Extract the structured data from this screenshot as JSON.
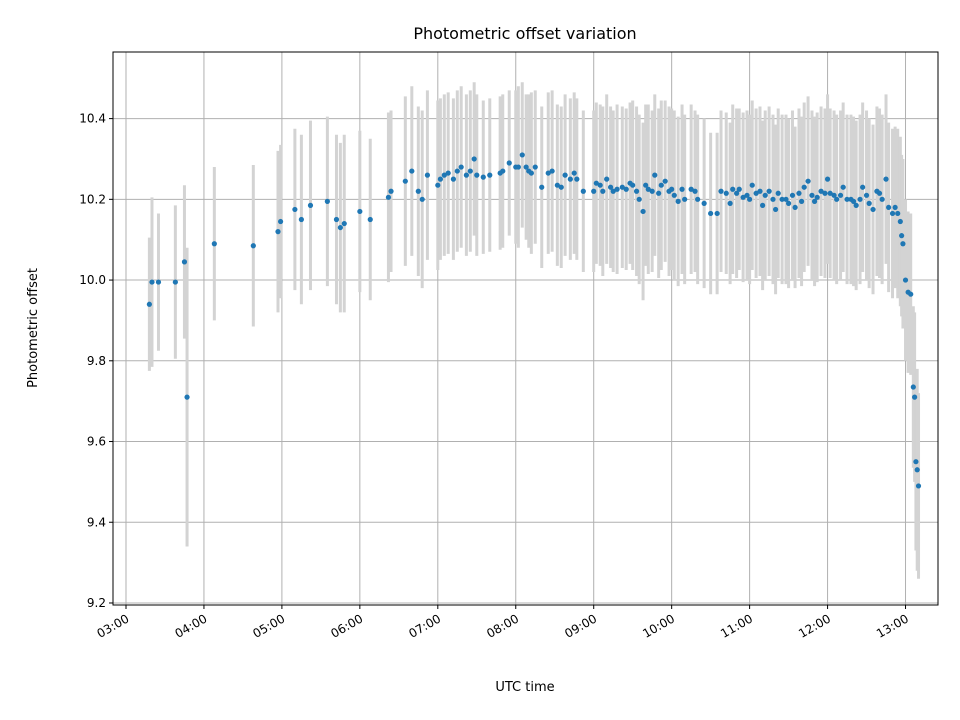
{
  "chart_data": {
    "type": "scatter",
    "title": "Photometric offset variation",
    "xlabel": "UTC time",
    "ylabel": "Photometric offset",
    "x_unit": "UTC time of day (hours)",
    "xlim": [
      "02:50",
      "13:25"
    ],
    "ylim": [
      9.195,
      10.565
    ],
    "x_ticks": [
      "03:00",
      "04:00",
      "05:00",
      "06:00",
      "07:00",
      "08:00",
      "09:00",
      "10:00",
      "11:00",
      "12:00",
      "13:00"
    ],
    "y_ticks": [
      "9.2",
      "9.4",
      "9.6",
      "9.8",
      "10.0",
      "10.2",
      "10.4"
    ],
    "grid": true,
    "colors": {
      "point": "#1f77b4",
      "errorbar": "#d3d3d3"
    },
    "series": [
      {
        "points": [
          [
            "03:18",
            9.94,
            0.165
          ],
          [
            "03:20",
            9.995,
            0.21
          ],
          [
            "03:25",
            9.995,
            0.17
          ],
          [
            "03:38",
            9.995,
            0.19
          ],
          [
            "03:45",
            10.045,
            0.19
          ],
          [
            "03:47",
            9.71,
            0.37
          ],
          [
            "04:08",
            10.09,
            0.19
          ],
          [
            "04:38",
            10.085,
            0.2
          ],
          [
            "04:57",
            10.12,
            0.2
          ],
          [
            "04:59",
            10.145,
            0.19
          ],
          [
            "05:10",
            10.175,
            0.2
          ],
          [
            "05:15",
            10.15,
            0.21
          ],
          [
            "05:22",
            10.185,
            0.21
          ],
          [
            "05:35",
            10.195,
            0.21
          ],
          [
            "05:42",
            10.15,
            0.21
          ],
          [
            "05:45",
            10.13,
            0.21
          ],
          [
            "05:48",
            10.14,
            0.22
          ],
          [
            "06:00",
            10.17,
            0.2
          ],
          [
            "06:08",
            10.15,
            0.2
          ],
          [
            "06:22",
            10.205,
            0.21
          ],
          [
            "06:24",
            10.22,
            0.2
          ],
          [
            "06:35",
            10.245,
            0.21
          ],
          [
            "06:40",
            10.27,
            0.21
          ],
          [
            "06:45",
            10.22,
            0.21
          ],
          [
            "06:48",
            10.2,
            0.22
          ],
          [
            "06:52",
            10.26,
            0.21
          ],
          [
            "07:00",
            10.235,
            0.21
          ],
          [
            "07:02",
            10.25,
            0.2
          ],
          [
            "07:05",
            10.26,
            0.2
          ],
          [
            "07:08",
            10.265,
            0.2
          ],
          [
            "07:12",
            10.25,
            0.2
          ],
          [
            "07:15",
            10.27,
            0.2
          ],
          [
            "07:18",
            10.28,
            0.2
          ],
          [
            "07:22",
            10.26,
            0.2
          ],
          [
            "07:25",
            10.27,
            0.2
          ],
          [
            "07:28",
            10.3,
            0.19
          ],
          [
            "07:30",
            10.26,
            0.2
          ],
          [
            "07:35",
            10.255,
            0.19
          ],
          [
            "07:40",
            10.26,
            0.19
          ],
          [
            "07:48",
            10.265,
            0.19
          ],
          [
            "07:50",
            10.27,
            0.19
          ],
          [
            "07:55",
            10.29,
            0.18
          ],
          [
            "08:00",
            10.28,
            0.19
          ],
          [
            "08:02",
            10.28,
            0.2
          ],
          [
            "08:05",
            10.31,
            0.18
          ],
          [
            "08:08",
            10.28,
            0.18
          ],
          [
            "08:10",
            10.27,
            0.19
          ],
          [
            "08:12",
            10.265,
            0.2
          ],
          [
            "08:15",
            10.28,
            0.19
          ],
          [
            "08:20",
            10.23,
            0.2
          ],
          [
            "08:25",
            10.265,
            0.2
          ],
          [
            "08:28",
            10.27,
            0.2
          ],
          [
            "08:32",
            10.235,
            0.2
          ],
          [
            "08:35",
            10.23,
            0.2
          ],
          [
            "08:38",
            10.26,
            0.2
          ],
          [
            "08:42",
            10.25,
            0.2
          ],
          [
            "08:45",
            10.265,
            0.2
          ],
          [
            "08:47",
            10.25,
            0.2
          ],
          [
            "08:52",
            10.22,
            0.2
          ],
          [
            "09:00",
            10.22,
            0.2
          ],
          [
            "09:02",
            10.24,
            0.2
          ],
          [
            "09:05",
            10.235,
            0.2
          ],
          [
            "09:07",
            10.22,
            0.21
          ],
          [
            "09:10",
            10.25,
            0.21
          ],
          [
            "09:13",
            10.23,
            0.2
          ],
          [
            "09:15",
            10.22,
            0.2
          ],
          [
            "09:18",
            10.225,
            0.21
          ],
          [
            "09:22",
            10.23,
            0.2
          ],
          [
            "09:25",
            10.225,
            0.2
          ],
          [
            "09:28",
            10.24,
            0.2
          ],
          [
            "09:30",
            10.235,
            0.21
          ],
          [
            "09:33",
            10.22,
            0.21
          ],
          [
            "09:35",
            10.2,
            0.21
          ],
          [
            "09:38",
            10.17,
            0.22
          ],
          [
            "09:40",
            10.235,
            0.2
          ],
          [
            "09:42",
            10.225,
            0.21
          ],
          [
            "09:45",
            10.22,
            0.2
          ],
          [
            "09:47",
            10.26,
            0.2
          ],
          [
            "09:50",
            10.215,
            0.21
          ],
          [
            "09:52",
            10.235,
            0.21
          ],
          [
            "09:55",
            10.245,
            0.2
          ],
          [
            "09:58",
            10.22,
            0.21
          ],
          [
            "10:00",
            10.225,
            0.2
          ],
          [
            "10:02",
            10.21,
            0.21
          ],
          [
            "10:05",
            10.195,
            0.21
          ],
          [
            "10:08",
            10.225,
            0.21
          ],
          [
            "10:10",
            10.2,
            0.21
          ],
          [
            "10:15",
            10.225,
            0.21
          ],
          [
            "10:18",
            10.22,
            0.2
          ],
          [
            "10:20",
            10.2,
            0.21
          ],
          [
            "10:25",
            10.19,
            0.21
          ],
          [
            "10:30",
            10.165,
            0.2
          ],
          [
            "10:35",
            10.165,
            0.2
          ],
          [
            "10:38",
            10.22,
            0.2
          ],
          [
            "10:42",
            10.215,
            0.2
          ],
          [
            "10:45",
            10.19,
            0.2
          ],
          [
            "10:47",
            10.225,
            0.21
          ],
          [
            "10:50",
            10.215,
            0.21
          ],
          [
            "10:52",
            10.225,
            0.2
          ],
          [
            "10:55",
            10.205,
            0.21
          ],
          [
            "10:58",
            10.21,
            0.21
          ],
          [
            "11:00",
            10.2,
            0.21
          ],
          [
            "11:02",
            10.235,
            0.21
          ],
          [
            "11:05",
            10.215,
            0.21
          ],
          [
            "11:08",
            10.22,
            0.21
          ],
          [
            "11:10",
            10.185,
            0.21
          ],
          [
            "11:12",
            10.21,
            0.21
          ],
          [
            "11:15",
            10.22,
            0.21
          ],
          [
            "11:18",
            10.2,
            0.21
          ],
          [
            "11:20",
            10.175,
            0.21
          ],
          [
            "11:22",
            10.215,
            0.21
          ],
          [
            "11:25",
            10.2,
            0.21
          ],
          [
            "11:28",
            10.2,
            0.21
          ],
          [
            "11:30",
            10.19,
            0.21
          ],
          [
            "11:33",
            10.21,
            0.21
          ],
          [
            "11:35",
            10.18,
            0.2
          ],
          [
            "11:38",
            10.215,
            0.21
          ],
          [
            "11:40",
            10.195,
            0.21
          ],
          [
            "11:42",
            10.23,
            0.21
          ],
          [
            "11:45",
            10.245,
            0.21
          ],
          [
            "11:48",
            10.21,
            0.21
          ],
          [
            "11:50",
            10.195,
            0.21
          ],
          [
            "11:52",
            10.205,
            0.21
          ],
          [
            "11:55",
            10.22,
            0.21
          ],
          [
            "11:58",
            10.215,
            0.21
          ],
          [
            "12:00",
            10.25,
            0.21
          ],
          [
            "12:02",
            10.215,
            0.21
          ],
          [
            "12:05",
            10.21,
            0.21
          ],
          [
            "12:07",
            10.2,
            0.21
          ],
          [
            "12:10",
            10.21,
            0.21
          ],
          [
            "12:12",
            10.23,
            0.21
          ],
          [
            "12:15",
            10.2,
            0.21
          ],
          [
            "12:18",
            10.2,
            0.21
          ],
          [
            "12:20",
            10.195,
            0.21
          ],
          [
            "12:22",
            10.185,
            0.21
          ],
          [
            "12:25",
            10.2,
            0.21
          ],
          [
            "12:27",
            10.23,
            0.21
          ],
          [
            "12:30",
            10.21,
            0.21
          ],
          [
            "12:32",
            10.19,
            0.21
          ],
          [
            "12:35",
            10.175,
            0.21
          ],
          [
            "12:38",
            10.22,
            0.21
          ],
          [
            "12:40",
            10.215,
            0.21
          ],
          [
            "12:42",
            10.2,
            0.21
          ],
          [
            "12:45",
            10.25,
            0.21
          ],
          [
            "12:47",
            10.18,
            0.21
          ],
          [
            "12:50",
            10.165,
            0.21
          ],
          [
            "12:52",
            10.18,
            0.2
          ],
          [
            "12:54",
            10.165,
            0.21
          ],
          [
            "12:56",
            10.145,
            0.21
          ],
          [
            "12:57",
            10.11,
            0.2
          ],
          [
            "12:58",
            10.09,
            0.21
          ],
          [
            "13:00",
            10.0,
            0.2
          ],
          [
            "13:02",
            9.97,
            0.2
          ],
          [
            "13:04",
            9.965,
            0.2
          ],
          [
            "13:06",
            9.735,
            0.2
          ],
          [
            "13:07",
            9.71,
            0.21
          ],
          [
            "13:08",
            9.55,
            0.22
          ],
          [
            "13:09",
            9.53,
            0.25
          ],
          [
            "13:10",
            9.49,
            0.23
          ]
        ]
      }
    ]
  }
}
